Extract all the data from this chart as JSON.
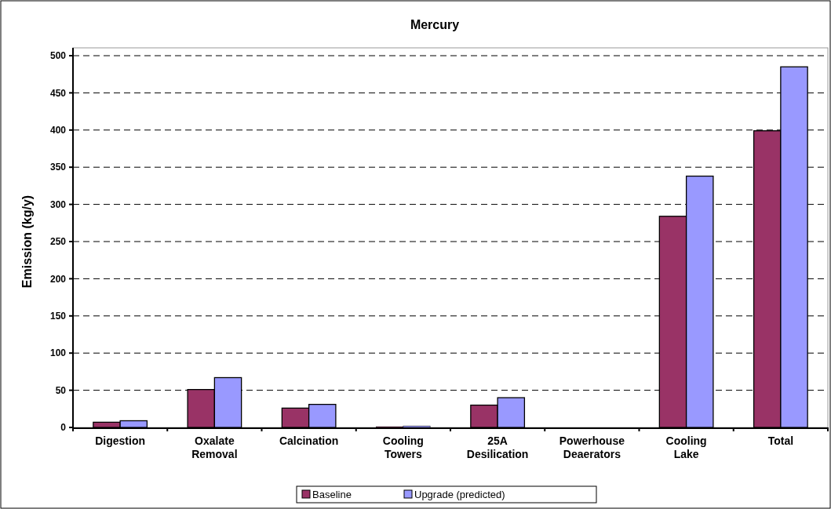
{
  "chart_data": {
    "type": "bar",
    "title": "Mercury",
    "ylabel": "Emission (kg/y)",
    "categories": [
      "Digestion",
      "Oxalate Removal",
      "Calcination",
      "Cooling Towers",
      "25A Desilication",
      "Powerhouse Deaerators",
      "Cooling Lake",
      "Total"
    ],
    "series": [
      {
        "name": "Baseline",
        "color": "#993366",
        "values": [
          7,
          51,
          26,
          1,
          30,
          0,
          284,
          399
        ]
      },
      {
        "name": "Upgrade (predicted)",
        "color": "#9999ff",
        "values": [
          9,
          67,
          31,
          2,
          40,
          0,
          338,
          485
        ]
      }
    ],
    "ylim": [
      0,
      500
    ],
    "yticks": [
      0,
      50,
      100,
      150,
      200,
      250,
      300,
      350,
      400,
      450,
      500
    ],
    "grid": "y",
    "legend": "bottom"
  }
}
